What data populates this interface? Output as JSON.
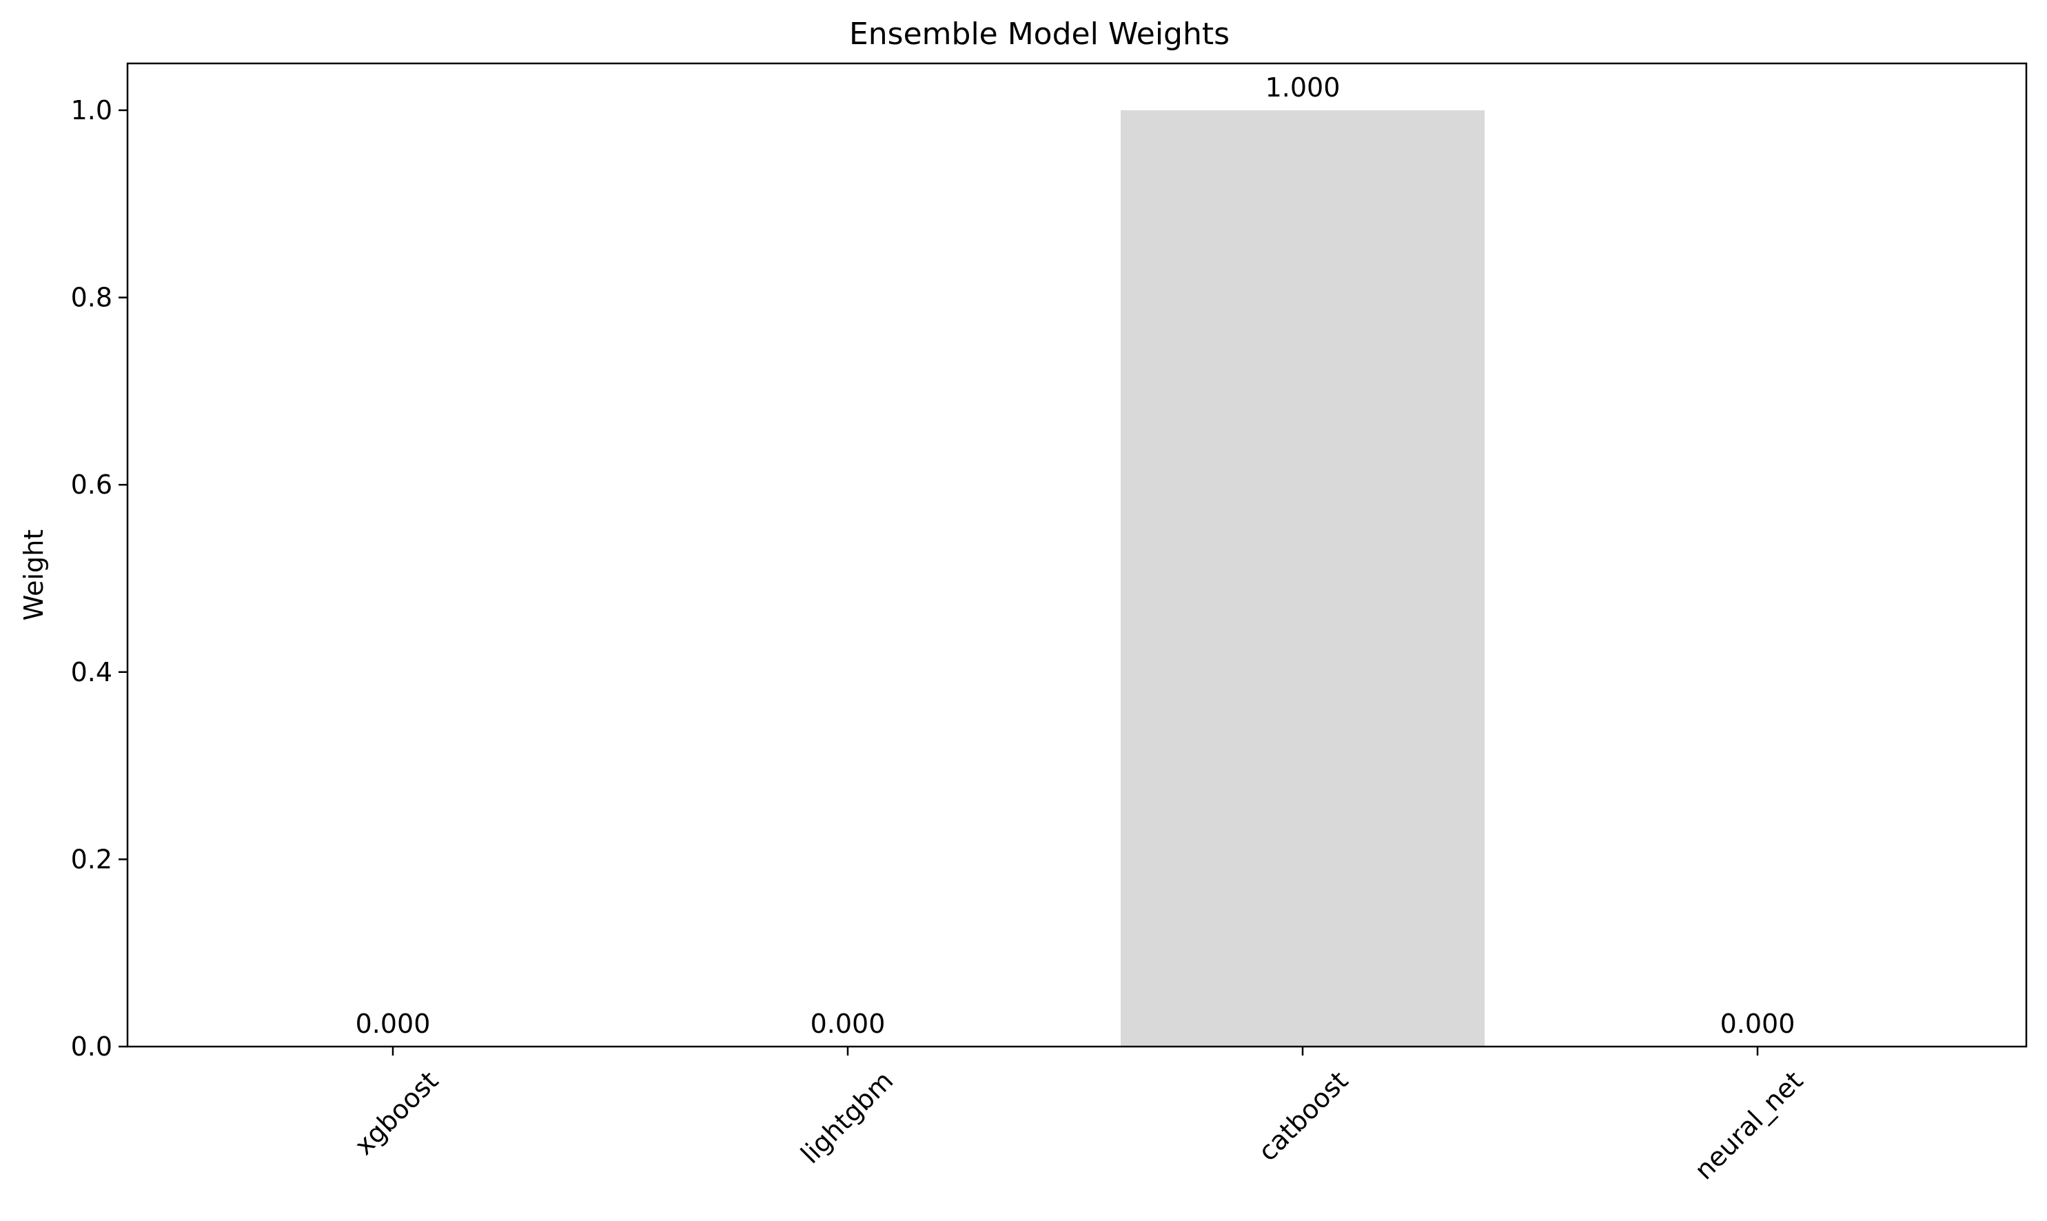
{
  "chart_data": {
    "type": "bar",
    "title": "Ensemble Model Weights",
    "xlabel": "",
    "ylabel": "Weight",
    "categories": [
      "xgboost",
      "lightgbm",
      "catboost",
      "neural_net"
    ],
    "values": [
      0.0,
      0.0,
      1.0,
      0.0
    ],
    "value_labels": [
      "0.000",
      "0.000",
      "1.000",
      "0.000"
    ],
    "ylim": [
      0,
      1.05
    ],
    "yticks": [
      0.0,
      0.2,
      0.4,
      0.6,
      0.8,
      1.0
    ],
    "ytick_labels": [
      "0.0",
      "0.2",
      "0.4",
      "0.6",
      "0.8",
      "1.0"
    ],
    "bar_color": "#d9d9d9",
    "grid": false,
    "legend": "none",
    "x_tick_rotation_deg": 45
  }
}
